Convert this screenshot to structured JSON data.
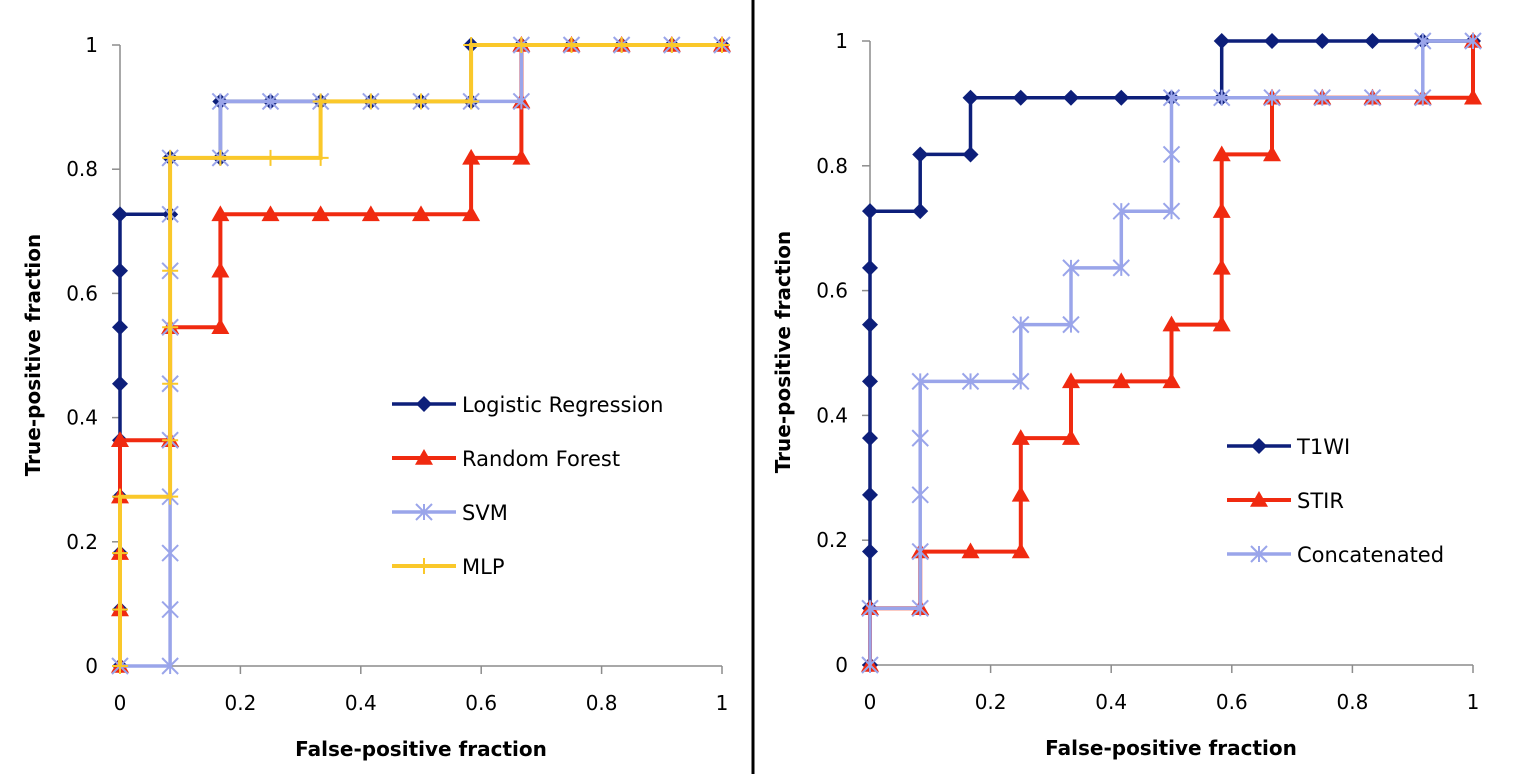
{
  "chart_data": [
    {
      "type": "line",
      "title": "",
      "xlabel": "False-positive fraction",
      "ylabel": "True-positive fraction",
      "xlim": [
        0,
        1
      ],
      "ylim": [
        0,
        1
      ],
      "xticks": [
        "0",
        "0.2",
        "0.4",
        "0.6",
        "0.8",
        "1"
      ],
      "yticks": [
        "0",
        "0.2",
        "0.4",
        "0.6",
        "0.8",
        "1"
      ],
      "grid": false,
      "legend_position": "center-right",
      "series": [
        {
          "name": "Logistic Regression",
          "color": "#0d1f7a",
          "marker": "diamond",
          "x": [
            0,
            0,
            0,
            0,
            0,
            0,
            0,
            0,
            0,
            0.0833,
            0.0833,
            0.1667,
            0.1667,
            0.25,
            0.3333,
            0.4167,
            0.5,
            0.5833,
            0.5833,
            0.6667,
            0.75,
            0.8333,
            0.9167,
            1
          ],
          "y": [
            0,
            0.0909,
            0.1818,
            0.2727,
            0.3636,
            0.4545,
            0.5455,
            0.6364,
            0.7273,
            0.7273,
            0.8182,
            0.8182,
            0.9091,
            0.9091,
            0.9091,
            0.9091,
            0.9091,
            0.9091,
            1,
            1,
            1,
            1,
            1,
            1
          ]
        },
        {
          "name": "Random Forest",
          "color": "#f02a10",
          "marker": "triangle",
          "x": [
            0,
            0,
            0,
            0,
            0,
            0.0833,
            0.0833,
            0.1667,
            0.1667,
            0.1667,
            0.25,
            0.3333,
            0.4167,
            0.5,
            0.5833,
            0.5833,
            0.6667,
            0.6667,
            0.6667,
            0.75,
            0.8333,
            0.9167,
            1
          ],
          "y": [
            0,
            0.0909,
            0.1818,
            0.2727,
            0.3636,
            0.3636,
            0.5455,
            0.5455,
            0.6364,
            0.7273,
            0.7273,
            0.7273,
            0.7273,
            0.7273,
            0.7273,
            0.8182,
            0.8182,
            0.9091,
            1,
            1,
            1,
            1,
            1
          ]
        },
        {
          "name": "SVM",
          "color": "#9aa5ea",
          "marker": "asterisk",
          "x": [
            0,
            0.0833,
            0.0833,
            0.0833,
            0.0833,
            0.0833,
            0.0833,
            0.0833,
            0.0833,
            0.0833,
            0.0833,
            0.1667,
            0.1667,
            0.25,
            0.3333,
            0.4167,
            0.5,
            0.5833,
            0.6667,
            0.6667,
            0.75,
            0.8333,
            0.9167,
            1
          ],
          "y": [
            0,
            0,
            0.0909,
            0.1818,
            0.2727,
            0.3636,
            0.4545,
            0.5455,
            0.6364,
            0.7273,
            0.8182,
            0.8182,
            0.9091,
            0.9091,
            0.9091,
            0.9091,
            0.9091,
            0.9091,
            0.9091,
            1,
            1,
            1,
            1,
            1
          ]
        },
        {
          "name": "MLP",
          "color": "#fac82a",
          "marker": "plus",
          "x": [
            0,
            0,
            0,
            0,
            0.0833,
            0.0833,
            0.0833,
            0.0833,
            0.0833,
            0.0833,
            0.1667,
            0.25,
            0.3333,
            0.3333,
            0.4167,
            0.5,
            0.5833,
            0.5833,
            0.6667,
            0.75,
            0.8333,
            0.9167,
            1
          ],
          "y": [
            0,
            0.0909,
            0.1818,
            0.2727,
            0.2727,
            0.3636,
            0.4545,
            0.5455,
            0.6364,
            0.8182,
            0.8182,
            0.8182,
            0.8182,
            0.9091,
            0.9091,
            0.9091,
            0.9091,
            1,
            1,
            1,
            1,
            1,
            1
          ]
        }
      ]
    },
    {
      "type": "line",
      "title": "",
      "xlabel": "False-positive fraction",
      "ylabel": "True-positive fraction",
      "xlim": [
        0,
        1
      ],
      "ylim": [
        0,
        1
      ],
      "xticks": [
        "0",
        "0.2",
        "0.4",
        "0.6",
        "0.8",
        "1"
      ],
      "yticks": [
        "0",
        "0.2",
        "0.4",
        "0.6",
        "0.8",
        "1"
      ],
      "grid": false,
      "legend_position": "center-right",
      "series": [
        {
          "name": "T1WI",
          "color": "#0d1f7a",
          "marker": "diamond",
          "x": [
            0,
            0,
            0,
            0,
            0,
            0,
            0,
            0,
            0,
            0.0833,
            0.0833,
            0.1667,
            0.1667,
            0.25,
            0.3333,
            0.4167,
            0.5,
            0.5833,
            0.5833,
            0.6667,
            0.75,
            0.8333,
            0.9167,
            1
          ],
          "y": [
            0,
            0.0909,
            0.1818,
            0.2727,
            0.3636,
            0.4545,
            0.5455,
            0.6364,
            0.7273,
            0.7273,
            0.8182,
            0.8182,
            0.9091,
            0.9091,
            0.9091,
            0.9091,
            0.9091,
            0.9091,
            1,
            1,
            1,
            1,
            1,
            1
          ]
        },
        {
          "name": "STIR",
          "color": "#f02a10",
          "marker": "triangle",
          "x": [
            0,
            0,
            0.0833,
            0.0833,
            0.1667,
            0.25,
            0.25,
            0.25,
            0.3333,
            0.3333,
            0.4167,
            0.5,
            0.5,
            0.5833,
            0.5833,
            0.5833,
            0.5833,
            0.6667,
            0.6667,
            0.75,
            0.8333,
            0.9167,
            1,
            1
          ],
          "y": [
            0,
            0.0909,
            0.0909,
            0.1818,
            0.1818,
            0.1818,
            0.2727,
            0.3636,
            0.3636,
            0.4545,
            0.4545,
            0.4545,
            0.5455,
            0.5455,
            0.6364,
            0.7273,
            0.8182,
            0.8182,
            0.9091,
            0.9091,
            0.9091,
            0.9091,
            0.9091,
            1
          ]
        },
        {
          "name": "Concatenated",
          "color": "#9aa5ea",
          "marker": "asterisk",
          "x": [
            0,
            0,
            0.0833,
            0.0833,
            0.0833,
            0.0833,
            0.0833,
            0.1667,
            0.25,
            0.25,
            0.3333,
            0.3333,
            0.4167,
            0.4167,
            0.5,
            0.5,
            0.5,
            0.5833,
            0.6667,
            0.75,
            0.8333,
            0.9167,
            0.9167,
            1
          ],
          "y": [
            0,
            0.0909,
            0.0909,
            0.1818,
            0.2727,
            0.3636,
            0.4545,
            0.4545,
            0.4545,
            0.5455,
            0.5455,
            0.6364,
            0.6364,
            0.7273,
            0.7273,
            0.8182,
            0.9091,
            0.9091,
            0.9091,
            0.9091,
            0.9091,
            0.9091,
            1,
            1
          ]
        }
      ]
    }
  ]
}
